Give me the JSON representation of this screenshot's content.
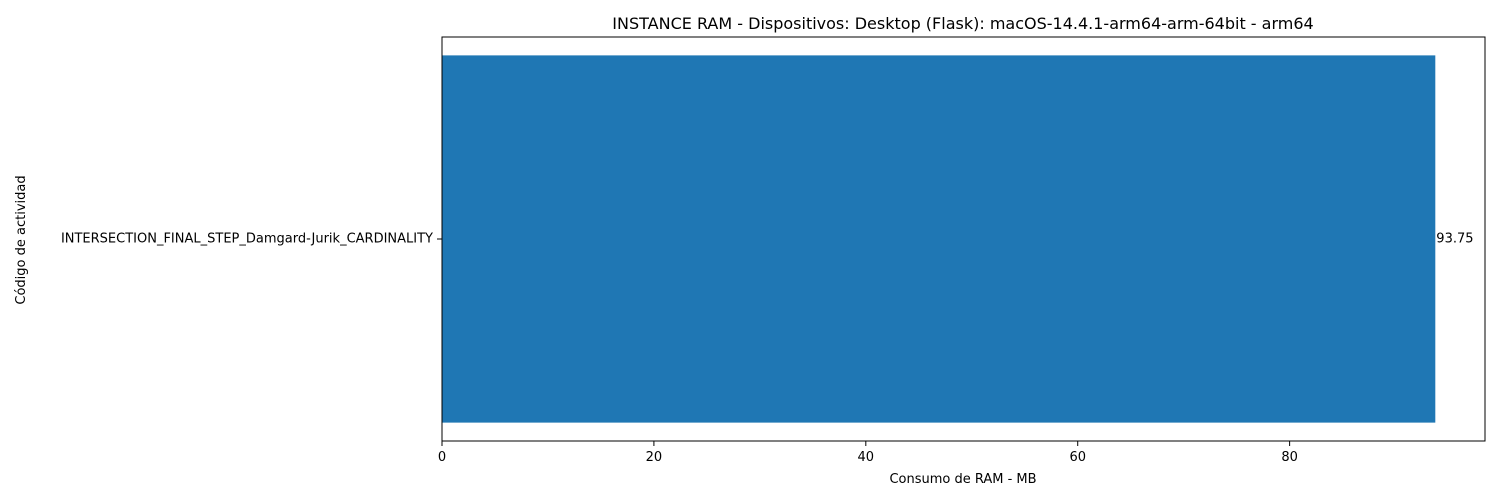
{
  "chart_data": {
    "type": "bar",
    "orientation": "horizontal",
    "title": "INSTANCE RAM - Dispositivos: Desktop (Flask): macOS-14.4.1-arm64-arm-64bit - arm64",
    "xlabel": "Consumo de RAM - MB",
    "ylabel": "Código de actividad",
    "categories": [
      "INTERSECTION_FINAL_STEP_Damgard-Jurik_CARDINALITY"
    ],
    "values": [
      93.75
    ],
    "data_labels": [
      "93.75"
    ],
    "xlim": [
      0,
      98.44
    ],
    "xticks": [
      0,
      20,
      40,
      60,
      80
    ],
    "xtick_labels": [
      "0",
      "20",
      "40",
      "60",
      "80"
    ],
    "grid": false,
    "legend": "none",
    "colors": {
      "bar": "#1f77b4",
      "axis": "#000000",
      "background": "#ffffff"
    }
  }
}
